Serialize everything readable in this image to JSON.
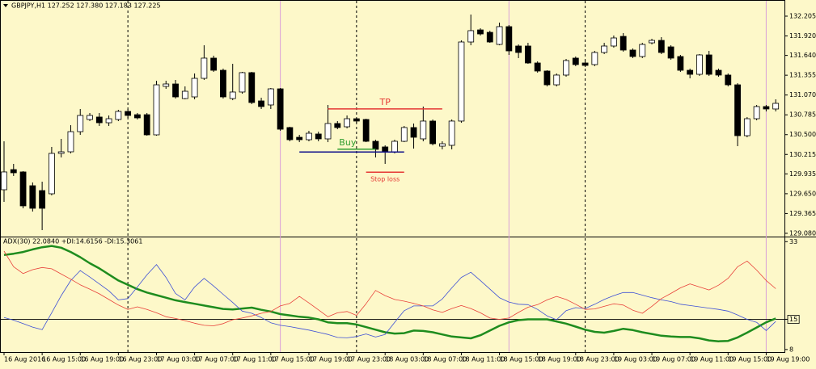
{
  "chart_data": [
    {
      "type": "candlestick",
      "title": "GBPJPY,H1  127.252 127.380 127.183 127.225",
      "categories": [
        "16 Aug 2016",
        null,
        null,
        null,
        "16 Aug 15:00",
        null,
        null,
        null,
        "16 Aug 19:00",
        null,
        null,
        null,
        "16 Aug 23:00",
        null,
        null,
        null,
        "17 Aug 03:00",
        null,
        null,
        null,
        "17 Aug 07:00",
        null,
        null,
        null,
        "17 Aug 11:00",
        null,
        null,
        null,
        "17 Aug 15:00",
        null,
        null,
        null,
        "17 Aug 19:00",
        null,
        null,
        null,
        "17 Aug 23:00",
        null,
        null,
        null,
        "18 Aug 03:00",
        null,
        null,
        null,
        "18 Aug 07:00",
        null,
        null,
        null,
        "18 Aug 11:00",
        null,
        null,
        null,
        "18 Aug 15:00",
        null,
        null,
        null,
        "18 Aug 19:00",
        null,
        null,
        null,
        "18 Aug 23:00",
        null,
        null,
        null,
        "19 Aug 03:00",
        null,
        null,
        null,
        "19 Aug 07:00",
        null,
        null,
        null,
        "19 Aug 11:00",
        null,
        null,
        null,
        "19 Aug 15:00",
        null,
        null,
        null,
        "19 Aug 19:00",
        null
      ],
      "open": [
        129.707,
        129.997,
        129.963,
        129.765,
        129.695,
        129.649,
        130.23,
        130.253,
        130.543,
        130.718,
        130.753,
        130.671,
        130.718,
        130.834,
        130.787,
        130.787,
        130.497,
        131.194,
        131.229,
        131.019,
        131.043,
        131.31,
        131.601,
        131.426,
        131.019,
        131.113,
        131.392,
        130.985,
        130.927,
        131.159,
        130.602,
        130.462,
        130.427,
        130.509,
        130.439,
        130.66,
        130.613,
        130.729,
        130.718,
        130.404,
        130.323,
        130.253,
        130.404,
        130.602,
        130.439,
        130.695,
        130.334,
        130.346,
        130.695,
        131.833,
        132.007,
        131.972,
        131.798,
        132.054,
        131.775,
        131.775,
        131.531,
        131.415,
        131.217,
        131.357,
        131.601,
        131.531,
        131.508,
        131.682,
        131.775,
        131.914,
        131.717,
        131.624,
        131.821,
        131.856,
        131.763,
        131.624,
        131.426,
        131.368,
        131.647,
        131.426,
        131.357,
        131.217,
        130.485,
        130.729,
        130.904,
        130.869
      ],
      "high": [
        130.404,
        130.079,
        129.974,
        129.812,
        129.823,
        130.323,
        130.439,
        130.636,
        130.869,
        130.811,
        130.811,
        130.776,
        130.857,
        130.869,
        130.811,
        130.811,
        131.275,
        131.275,
        131.287,
        131.194,
        131.38,
        131.786,
        131.636,
        131.45,
        131.519,
        131.403,
        131.403,
        131.031,
        131.171,
        131.171,
        130.613,
        130.497,
        130.555,
        130.543,
        130.927,
        130.695,
        130.776,
        130.741,
        130.729,
        130.427,
        130.346,
        130.427,
        130.625,
        130.66,
        130.904,
        130.718,
        130.404,
        130.718,
        131.856,
        132.228,
        132.03,
        131.996,
        132.112,
        132.077,
        131.798,
        131.821,
        131.554,
        131.426,
        131.38,
        131.589,
        131.624,
        131.566,
        131.705,
        131.821,
        131.926,
        131.961,
        131.74,
        131.821,
        131.879,
        131.903,
        131.786,
        131.647,
        131.45,
        131.659,
        131.705,
        131.45,
        131.38,
        131.24,
        130.753,
        130.927,
        130.927,
        131.008
      ],
      "low": [
        129.533,
        129.905,
        129.44,
        129.393,
        129.126,
        129.626,
        130.172,
        130.23,
        130.497,
        130.695,
        130.625,
        130.625,
        130.695,
        130.741,
        130.718,
        130.485,
        130.485,
        131.159,
        131.019,
        131.008,
        131.008,
        131.287,
        131.403,
        131.019,
        130.996,
        131.089,
        130.939,
        130.869,
        130.869,
        130.555,
        130.404,
        130.392,
        130.404,
        130.404,
        130.392,
        130.578,
        130.59,
        130.671,
        130.392,
        130.172,
        130.079,
        130.23,
        130.392,
        130.299,
        130.404,
        130.346,
        130.288,
        130.288,
        130.671,
        131.786,
        131.926,
        131.821,
        131.786,
        131.647,
        131.601,
        131.519,
        131.392,
        131.194,
        131.194,
        131.334,
        131.485,
        131.473,
        131.485,
        131.659,
        131.752,
        131.694,
        131.601,
        131.601,
        131.798,
        131.659,
        131.578,
        131.403,
        131.31,
        131.345,
        131.345,
        131.334,
        131.194,
        130.334,
        130.462,
        130.706,
        130.834,
        130.834
      ],
      "close": [
        129.963,
        129.951,
        129.475,
        129.44,
        129.44,
        130.23,
        130.253,
        130.543,
        130.776,
        130.776,
        130.671,
        130.729,
        130.834,
        130.776,
        130.741,
        130.497,
        131.217,
        131.229,
        131.043,
        131.124,
        131.31,
        131.601,
        131.426,
        131.043,
        131.113,
        131.392,
        130.962,
        130.904,
        131.159,
        130.578,
        130.427,
        130.427,
        130.52,
        130.439,
        130.66,
        130.602,
        130.729,
        130.695,
        130.404,
        130.288,
        130.253,
        130.404,
        130.602,
        130.462,
        130.695,
        130.369,
        130.369,
        130.695,
        131.833,
        131.996,
        131.949,
        131.833,
        132.054,
        131.705,
        131.682,
        131.531,
        131.415,
        131.217,
        131.357,
        131.566,
        131.508,
        131.496,
        131.682,
        131.775,
        131.891,
        131.717,
        131.624,
        131.798,
        131.856,
        131.682,
        131.601,
        131.426,
        131.368,
        131.647,
        131.368,
        131.357,
        131.217,
        130.485,
        130.729,
        130.904,
        130.869,
        130.95
      ],
      "up_color": "#ffffff",
      "down_color": "#000000",
      "ylim": [
        129.033,
        132.414
      ],
      "yticks": [
        132.205,
        {
          "value": 131.92,
          "label": "131.920"
        },
        {
          "value": 131.64,
          "label": "131.640"
        },
        131.355,
        {
          "value": 131.07,
          "label": "131.070"
        },
        130.785,
        {
          "value": 130.5,
          "label": "130.500"
        },
        130.215,
        129.935,
        {
          "value": 129.65,
          "label": "129.650"
        },
        129.365,
        {
          "value": 129.08,
          "label": "129.080"
        }
      ],
      "annotations": [
        {
          "text": "TP",
          "color": "#e53935",
          "value": 130.87
        },
        {
          "text": "Buy",
          "color": "#2e9d2e",
          "value": 130.29
        },
        {
          "color": "#10108a",
          "value": 130.25
        },
        {
          "text": "Stop loss",
          "color": "#e53935",
          "value": 129.96
        }
      ]
    },
    {
      "type": "line",
      "title": "ADX(30) 22.0840 +DI:14.6156 -DI:15.3061",
      "series": [
        {
          "color": "#1e8c1e",
          "width": 2.5,
          "values": [
            29.9,
            30.2,
            30.6,
            31.2,
            31.7,
            32.0,
            31.6,
            30.6,
            29.4,
            28.0,
            26.8,
            25.4,
            24.0,
            23.0,
            22.0,
            21.2,
            20.6,
            20.0,
            19.4,
            19.0,
            18.6,
            18.2,
            17.8,
            17.4,
            17.3,
            17.5,
            17.7,
            17.2,
            16.8,
            16.2,
            15.9,
            15.6,
            15.4,
            15.0,
            14.3,
            14.1,
            14.1,
            13.8,
            13.2,
            12.6,
            12.0,
            11.7,
            11.8,
            12.4,
            12.3,
            12.0,
            11.5,
            11.0,
            10.8,
            10.6,
            11.3,
            12.4,
            13.5,
            14.3,
            14.8,
            15.0,
            15.0,
            15.0,
            14.5,
            14.0,
            13.3,
            12.6,
            12.1,
            11.9,
            12.3,
            12.8,
            12.5,
            12.0,
            11.6,
            11.2,
            11.0,
            10.9,
            10.9,
            10.6,
            10.1,
            9.9,
            10.0,
            10.8,
            11.9,
            13.1,
            14.3,
            15.2
          ]
        },
        {
          "color": "#3d4fd6",
          "width": 0.8,
          "values": [
            15.4,
            14.8,
            14.0,
            13.2,
            12.6,
            16.5,
            20.5,
            24.0,
            26.3,
            24.8,
            23.2,
            21.6,
            19.5,
            19.8,
            22.5,
            25.3,
            27.7,
            24.7,
            21.0,
            19.5,
            22.5,
            24.5,
            22.7,
            20.8,
            18.9,
            16.9,
            16.4,
            15.4,
            14.2,
            13.6,
            13.3,
            12.9,
            12.5,
            12.0,
            11.5,
            10.8,
            10.7,
            11.0,
            11.6,
            10.9,
            11.5,
            14.3,
            17.0,
            18.1,
            18.1,
            18.1,
            19.7,
            22.3,
            24.7,
            25.9,
            24.0,
            22.0,
            20.0,
            19.0,
            18.5,
            18.4,
            17.3,
            15.8,
            14.9,
            17.0,
            17.7,
            17.5,
            18.5,
            19.6,
            20.5,
            21.2,
            21.2,
            20.6,
            20.0,
            19.5,
            19.1,
            18.5,
            18.2,
            17.9,
            17.6,
            17.3,
            16.9,
            16.0,
            15.0,
            14.3,
            12.4,
            14.5
          ]
        },
        {
          "color": "#e8403a",
          "width": 0.8,
          "values": [
            30.8,
            27.2,
            25.6,
            26.5,
            27.0,
            26.7,
            25.5,
            24.3,
            23.0,
            22.0,
            20.9,
            19.6,
            18.3,
            17.3,
            17.9,
            17.3,
            16.5,
            15.6,
            15.2,
            14.7,
            14.1,
            13.6,
            13.5,
            14.0,
            14.9,
            15.3,
            15.8,
            16.4,
            16.8,
            18.1,
            18.7,
            20.3,
            18.8,
            17.2,
            15.6,
            16.5,
            16.8,
            15.9,
            18.6,
            21.7,
            20.5,
            19.6,
            19.2,
            18.7,
            18.1,
            17.2,
            16.6,
            17.5,
            18.2,
            17.5,
            16.5,
            15.3,
            15.0,
            15.3,
            16.6,
            17.8,
            18.4,
            19.5,
            20.3,
            19.6,
            18.5,
            17.3,
            17.4,
            18.0,
            18.6,
            18.3,
            17.1,
            16.4,
            18.0,
            19.8,
            21.0,
            22.3,
            23.2,
            22.5,
            21.8,
            22.9,
            24.5,
            27.2,
            28.5,
            26.4,
            24.0,
            22.1
          ]
        }
      ],
      "ylim": [
        7.6,
        33.8
      ],
      "yticks": [
        33,
        15,
        8
      ],
      "level": 15
    }
  ]
}
